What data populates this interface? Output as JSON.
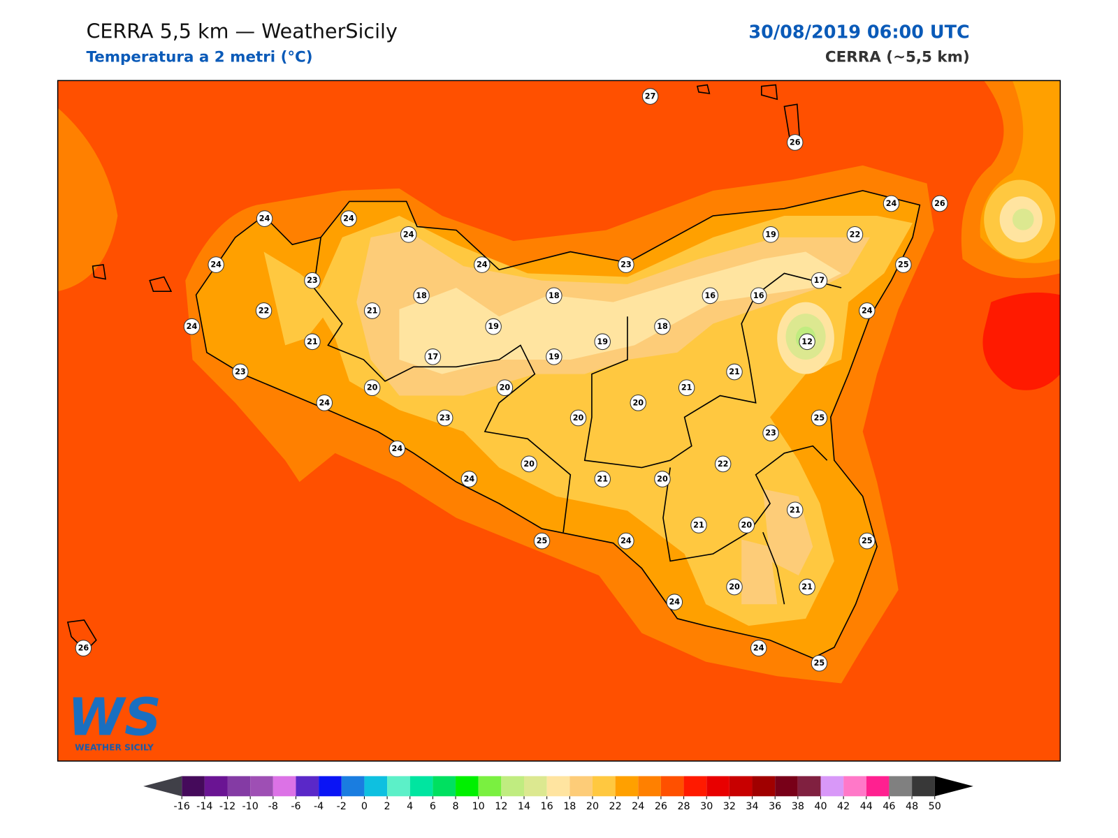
{
  "header": {
    "title": "CERRA 5,5 km — WeatherSicily",
    "subtitle": "Temperatura a 2 metri (°C)",
    "datetime": "30/08/2019 06:00 UTC",
    "model": "CERRA (~5,5 km)"
  },
  "stations": [
    27,
    26,
    24,
    24,
    24,
    24,
    23,
    24,
    23,
    19,
    22,
    24,
    26,
    25,
    17,
    22,
    21,
    18,
    18,
    16,
    16,
    24,
    24,
    21,
    19,
    19,
    18,
    12,
    23,
    17,
    19,
    21,
    20,
    20,
    21,
    24,
    20,
    23,
    20,
    25,
    23,
    24,
    22,
    20,
    24,
    21,
    20,
    21,
    21,
    20,
    25,
    24,
    25,
    20,
    21,
    24,
    24,
    25,
    26
  ],
  "logo": {
    "text": "WS",
    "caption": "WEATHER SICILY"
  },
  "colorbar": {
    "ticks": [
      -16,
      -14,
      -12,
      -10,
      -8,
      -6,
      -4,
      -2,
      0,
      2,
      4,
      6,
      8,
      10,
      12,
      14,
      16,
      18,
      20,
      22,
      24,
      26,
      28,
      30,
      32,
      34,
      36,
      38,
      40,
      42,
      44,
      46,
      48,
      50
    ],
    "colors": [
      "#450a5b",
      "#6a1493",
      "#843ba4",
      "#9e4fb4",
      "#dc72e6",
      "#5a28c8",
      "#0a14f5",
      "#1a7de0",
      "#0ec0e0",
      "#5cf0c8",
      "#00e5a0",
      "#00e060",
      "#00f000",
      "#7af040",
      "#c0ec80",
      "#dce890",
      "#ffe4a0",
      "#fdcc78",
      "#ffc840",
      "#ffa000",
      "#ff8000",
      "#ff5000",
      "#ff1a00",
      "#e80000",
      "#c80000",
      "#a00000",
      "#780018",
      "#802040",
      "#d898f8",
      "#ff78c8",
      "#ff2090",
      "#808080",
      "#383838"
    ],
    "under": "#404048",
    "over": "#000000"
  }
}
